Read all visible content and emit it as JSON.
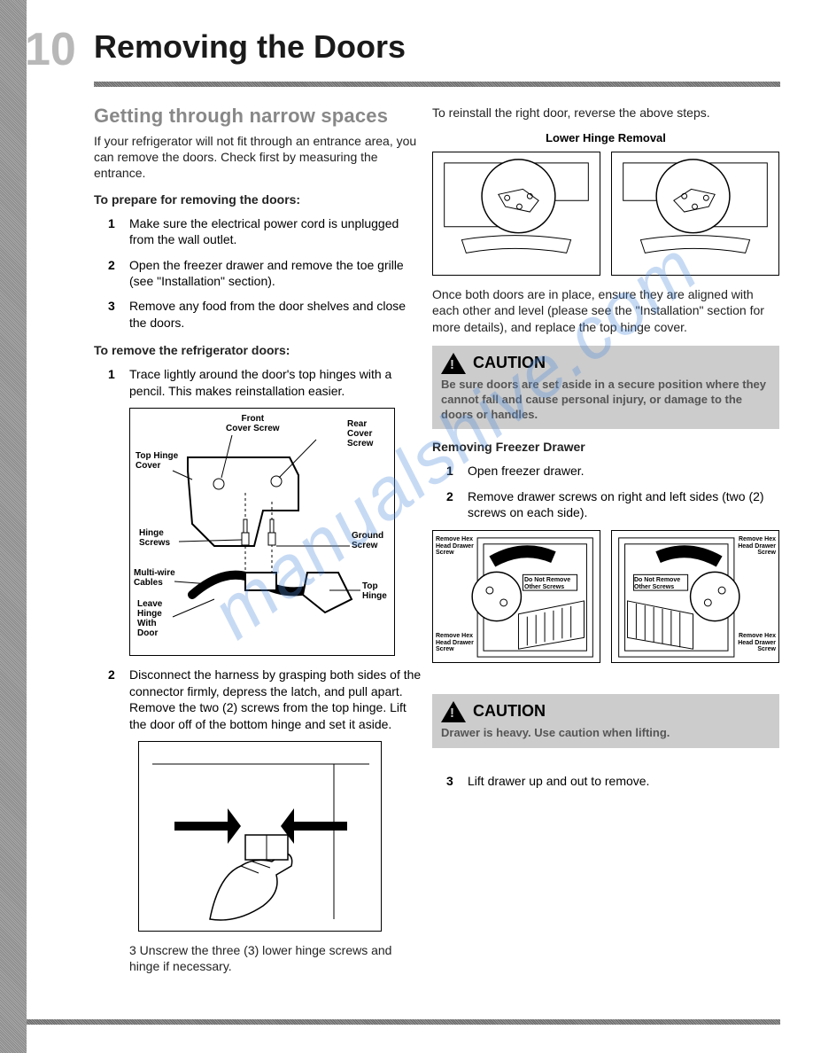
{
  "page_number": "10",
  "page_title": "Removing the Doors",
  "watermark": "manualshive.com",
  "left": {
    "section_heading": "Getting through narrow spaces",
    "intro": "If your refrigerator will not fit through an entrance area, you can remove the doors. Check first by measuring the entrance.",
    "prepare_heading": "To prepare for removing the doors:",
    "prepare_steps": [
      "Make sure the electrical power cord is unplugged from the wall outlet.",
      "Open the freezer drawer and remove the toe grille (see \"Installation\" section).",
      "Remove any food from the door shelves and close the doors."
    ],
    "remove_heading": "To remove the refrigerator doors:",
    "remove_step1": "Trace lightly around the door's top hinges with a pencil. This makes reinstallation easier.",
    "diagram1_labels": {
      "front_cover_screw": "Front\nCover Screw",
      "rear_cover_screw": "Rear\nCover\nScrew",
      "top_hinge_cover": "Top Hinge\nCover",
      "hinge_screws": "Hinge\nScrews",
      "ground_screw": "Ground\nScrew",
      "multi_wire": "Multi-wire\nCables",
      "top_hinge": "Top\nHinge",
      "leave_hinge": "Leave\nHinge\nWith\nDoor"
    },
    "remove_step2": "Disconnect the harness by grasping both sides of the connector firmly, depress the latch, and pull apart.  Remove the two (2) screws from the top hinge. Lift the door off of the bottom hinge and set it aside.",
    "remove_step3": "3 Unscrew the three (3) lower hinge screws and hinge if necessary."
  },
  "right": {
    "reinstall_text": "To reinstall the right door, reverse the above steps.",
    "lower_hinge_title": "Lower Hinge Removal",
    "aligned_text": "Once both doors are in place, ensure they are aligned with each other and level (please see the \"Installation\" section for more details), and replace the top hinge cover.",
    "caution1_label": "CAUTION",
    "caution1_body": "Be sure doors are set aside in a secure position where they cannot fall and cause personal injury, or damage to the doors or handles.",
    "freezer_heading": "Removing Freezer Drawer",
    "freezer_steps": [
      "Open freezer drawer.",
      "Remove drawer screws on right and left sides (two (2) screws on each side)."
    ],
    "drawer_labels": {
      "remove_hex": "Remove Hex\nHead Drawer\nScrew",
      "do_not": "Do Not Remove\nOther Screws"
    },
    "caution2_label": "CAUTION",
    "caution2_body": "Drawer is heavy.  Use caution when lifting.",
    "freezer_step3": "Lift drawer up and out to remove."
  }
}
